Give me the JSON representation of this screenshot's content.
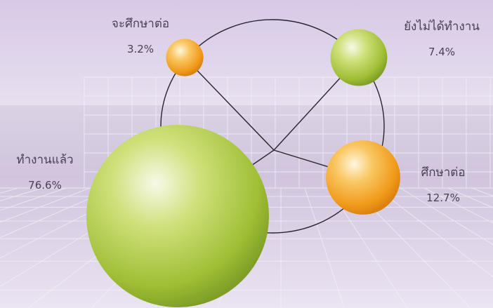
{
  "chart_data": {
    "type": "pie",
    "title": "",
    "series": [
      {
        "name": "ทำงานแล้ว",
        "value": 76.6,
        "display": "76.6%",
        "color": "#b7cf4a"
      },
      {
        "name": "ศึกษาต่อ",
        "value": 12.7,
        "display": "12.7%",
        "color": "#f5a623"
      },
      {
        "name": "ยังไม่ได้ทำงาน",
        "value": 7.4,
        "display": "7.4%",
        "color": "#a6c84a"
      },
      {
        "name": "จะศึกษาต่อ",
        "value": 3.2,
        "display": "3.2%",
        "color": "#f3b23a"
      }
    ]
  }
}
